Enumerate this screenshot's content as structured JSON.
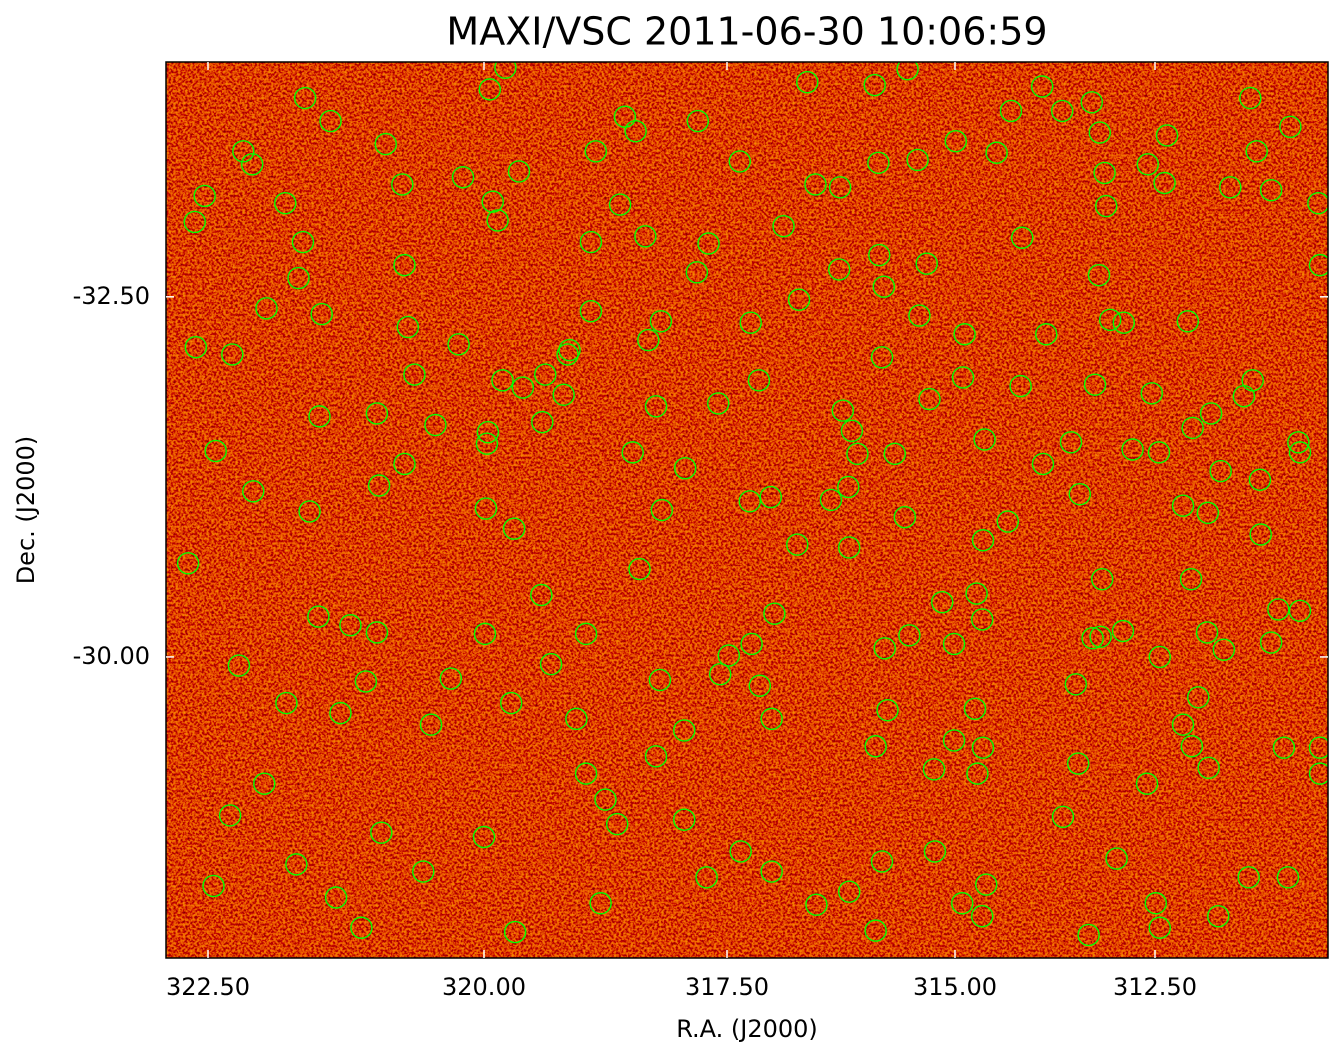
{
  "chart_data": {
    "type": "scatter",
    "title": "MAXI/VSC 2011-06-30 10:06:59",
    "xlabel": "R.A. (J2000)",
    "ylabel": "Dec. (J2000)",
    "color": "#00ff00",
    "marker": "open-circle",
    "xlim": [
      322.88,
      310.34
    ],
    "ylim": [
      -27.91,
      -34.13
    ],
    "xticks": [
      {
        "value": 322.5,
        "label": "322.50"
      },
      {
        "value": 320,
        "label": "320.00"
      },
      {
        "value": 317.5,
        "label": "317.50"
      },
      {
        "value": 315,
        "label": "315.00"
      },
      {
        "value": 312.5,
        "label": "312.50"
      }
    ],
    "yticks": [
      {
        "value": -32.5,
        "label": "-32.50"
      },
      {
        "value": -30,
        "label": "-30.00"
      }
    ],
    "x": [
      321.62,
      321.39,
      322.18,
      322.1,
      322.53,
      322.62,
      321.8,
      321.64,
      321.68,
      321.97,
      321.47,
      322.61,
      322.28,
      321.49,
      322.43,
      322.09,
      321.58,
      322.68,
      321.5,
      321.21,
      320.97,
      322.22,
      321.79,
      321.3,
      321.99,
      322.3,
      321.7,
      322.45,
      321.34,
      321.11,
      320.89,
      320.74,
      320.72,
      320.69,
      320.63,
      320.97,
      320.72,
      320.95,
      320.44,
      321.07,
      320.48,
      320.93,
      320.55,
      319.94,
      319.78,
      320.19,
      319.64,
      319.91,
      320.23,
      319.81,
      319.96,
      319.98,
      319.69,
      319.99,
      320.3,
      319.72,
      320.0,
      319.68,
      319.37,
      319.14,
      319.4,
      319.41,
      319.31,
      319.05,
      318.85,
      318.9,
      318.9,
      318.55,
      318.6,
      318.34,
      318.47,
      318.4,
      318.95,
      318.19,
      318.95,
      318.75,
      318.63,
      318.8,
      318.23,
      318.18,
      318.23,
      317.8,
      317.69,
      317.81,
      317.59,
      317.93,
      318.17,
      317.94,
      317.94,
      317.71,
      317.36,
      317.24,
      317.15,
      317.25,
      317.02,
      316.73,
      316.98,
      317.23,
      317.48,
      317.57,
      317.14,
      317.01,
      317.35,
      317.01,
      316.62,
      316.88,
      316.53,
      316.71,
      316.26,
      316.27,
      316.23,
      316.13,
      316.07,
      316.17,
      316.36,
      316.16,
      316.52,
      316.16,
      315.88,
      315.84,
      315.83,
      315.78,
      315.8,
      315.66,
      315.55,
      315.77,
      315.5,
      315.74,
      315.87,
      315.8,
      315.87,
      315.52,
      315.41,
      315.31,
      315.39,
      315.28,
      315.14,
      315.23,
      315.22,
      314.99,
      314.88,
      314.9,
      314.63,
      315.01,
      315.01,
      314.75,
      314.65,
      314.72,
      314.91,
      314.61,
      314.66,
      314.73,
      314.66,
      314.65,
      314.34,
      314.48,
      314.3,
      314.16,
      314.18,
      313.86,
      313.91,
      313.66,
      313.9,
      313.55,
      313.44,
      313.49,
      313.46,
      313.65,
      313.28,
      313.18,
      313.16,
      313.2,
      313.25,
      313.29,
      313.19,
      313.13,
      313.11,
      313.06,
      312.89,
      312.78,
      312.98,
      313.33,
      312.9,
      312.59,
      312.35,
      312.38,
      312.09,
      312.54,
      312.45,
      312.15,
      312.05,
      312.44,
      312.15,
      312.04,
      312.6,
      312.49,
      312.44,
      311.8,
      312.03,
      311.84,
      311.68,
      311.85,
      311.64,
      311.96,
      311.83,
      311.56,
      311.31,
      311.23,
      311.05,
      311.28,
      311.39,
      311.19,
      311.18,
      310.96,
      311.05,
      310.71,
      310.69,
      310.89,
      311.33,
      310.84,
      311.71,
      310.81,
      310.46,
      310.44,
      310.69,
      310.44,
      310.44,
      319.12,
      319.18,
      319.97,
      318.31,
      319.6,
      319.86,
      318.44
    ],
    "y": [
      -33.88,
      -33.72,
      -33.51,
      -33.42,
      -33.2,
      -33.02,
      -33.15,
      -32.88,
      -32.63,
      -32.42,
      -32.38,
      -32.15,
      -32.1,
      -31.67,
      -31.43,
      -31.15,
      -31.01,
      -30.65,
      -30.28,
      -30.22,
      -30.17,
      -29.94,
      -29.68,
      -29.61,
      -29.12,
      -28.9,
      -28.56,
      -28.41,
      -28.33,
      -28.12,
      -33.56,
      -33.28,
      -32.72,
      -32.29,
      -31.96,
      -31.69,
      -31.34,
      -31.19,
      -31.61,
      -29.83,
      -29.53,
      -28.78,
      -28.51,
      -33.94,
      -34.09,
      -33.33,
      -33.37,
      -33.16,
      -32.17,
      -31.92,
      -31.56,
      -31.03,
      -30.89,
      -30.16,
      -29.85,
      -29.68,
      -28.75,
      -28.09,
      -31.96,
      -32.1,
      -31.63,
      -30.43,
      -29.95,
      -29.57,
      -33.51,
      -32.88,
      -32.4,
      -33.75,
      -33.14,
      -32.92,
      -31.42,
      -30.61,
      -30.16,
      -29.84,
      -29.19,
      -29.01,
      -28.84,
      -28.29,
      -29.31,
      -32.33,
      -31.74,
      -33.72,
      -32.87,
      -32.67,
      -31.76,
      -31.31,
      -31.02,
      -29.49,
      -28.87,
      -28.47,
      -33.44,
      -32.32,
      -31.92,
      -31.08,
      -31.11,
      -30.78,
      -30.3,
      -30.09,
      -30.01,
      -29.88,
      -29.8,
      -29.57,
      -28.65,
      -28.51,
      -33.99,
      -32.99,
      -33.28,
      -32.48,
      -33.26,
      -32.69,
      -31.71,
      -31.57,
      -31.41,
      -31.18,
      -31.09,
      -30.76,
      -28.28,
      -28.37,
      -33.97,
      -33.43,
      -32.79,
      -32.57,
      -32.08,
      -31.41,
      -30.97,
      -30.06,
      -30.15,
      -29.63,
      -29.38,
      -28.58,
      -28.1,
      -34.08,
      -33.45,
      -32.73,
      -32.37,
      -31.79,
      -30.38,
      -29.22,
      -28.65,
      -33.58,
      -32.24,
      -31.94,
      -31.51,
      -30.09,
      -29.42,
      -29.64,
      -29.37,
      -29.19,
      -28.29,
      -28.42,
      -28.2,
      -30.44,
      -30.26,
      -30.81,
      -30.94,
      -33.5,
      -33.79,
      -32.91,
      -31.88,
      -32.24,
      -33.96,
      -33.79,
      -31.34,
      -31.49,
      -31.13,
      -29.81,
      -29.26,
      -28.89,
      -30.13,
      -30.14,
      -30.54,
      -32.65,
      -31.89,
      -33.85,
      -33.64,
      -33.36,
      -33.13,
      -32.34,
      -32.32,
      -31.44,
      -28.6,
      -28.07,
      -30.18,
      -33.42,
      -33.62,
      -33.29,
      -32.33,
      -31.83,
      -31.42,
      -31.05,
      -30.54,
      -30.0,
      -29.53,
      -29.38,
      -29.12,
      -28.29,
      -28.12,
      -31.69,
      -31.59,
      -31.0,
      -31.29,
      -30.17,
      -30.05,
      -29.72,
      -29.23,
      -33.26,
      -33.88,
      -33.51,
      -33.24,
      -31.92,
      -31.81,
      -31.23,
      -30.85,
      -30.33,
      -30.1,
      -31.49,
      -31.42,
      -29.37,
      -28.47,
      -28.47,
      -28.2,
      -33.68,
      -33.15,
      -32.72,
      -30.32,
      -29.37,
      -29.19,
      -32.13,
      -31.82,
      -31.48,
      -32.2,
      -31.87,
      -33.03,
      -33.65
    ]
  }
}
